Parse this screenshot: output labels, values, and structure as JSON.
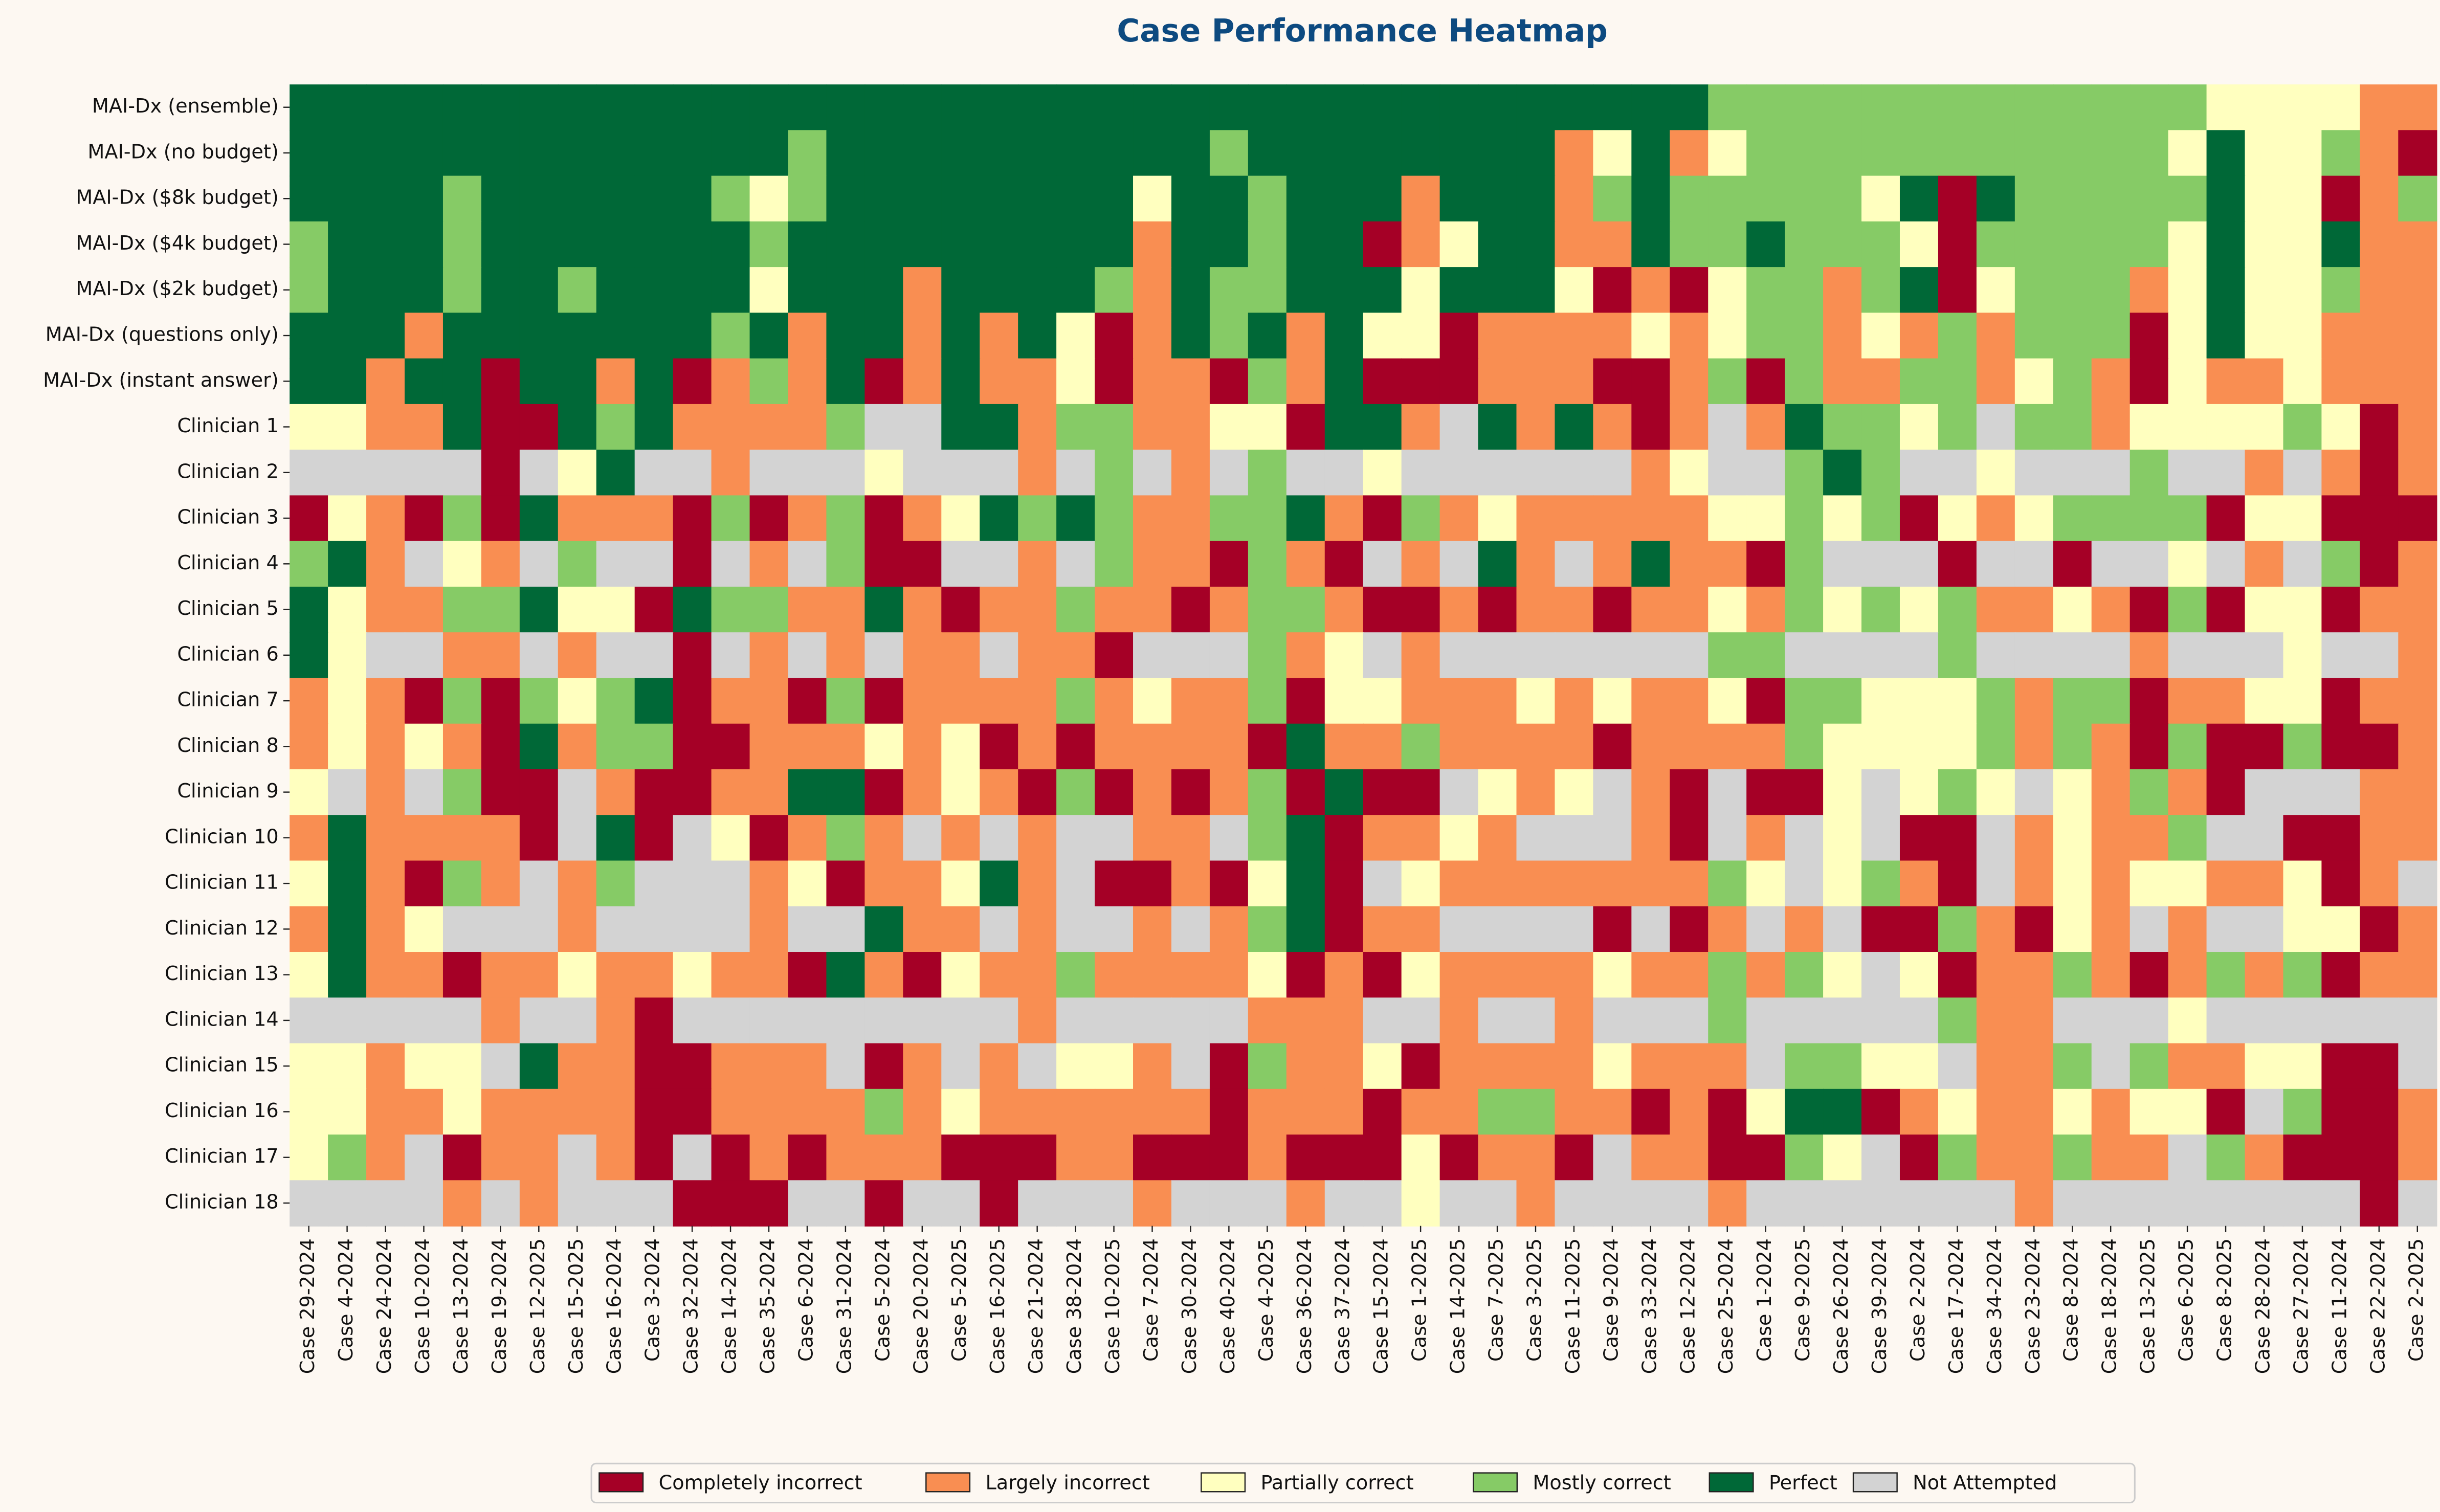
{
  "chart_data": {
    "type": "heatmap",
    "title": "Case Performance Heatmap",
    "rows": [
      "MAI-Dx (ensemble)",
      "MAI-Dx (no budget)",
      "MAI-Dx ($8k budget)",
      "MAI-Dx ($4k budget)",
      "MAI-Dx ($2k budget)",
      "MAI-Dx (questions only)",
      "MAI-Dx (instant answer)",
      "Clinician 1",
      "Clinician 2",
      "Clinician 3",
      "Clinician 4",
      "Clinician 5",
      "Clinician 6",
      "Clinician 7",
      "Clinician 8",
      "Clinician 9",
      "Clinician 10",
      "Clinician 11",
      "Clinician 12",
      "Clinician 13",
      "Clinician 14",
      "Clinician 15",
      "Clinician 16",
      "Clinician 17",
      "Clinician 18"
    ],
    "categories": [
      "Case 29-2024",
      "Case 4-2024",
      "Case 24-2024",
      "Case 10-2024",
      "Case 13-2024",
      "Case 19-2024",
      "Case 12-2025",
      "Case 15-2025",
      "Case 16-2024",
      "Case 3-2024",
      "Case 32-2024",
      "Case 14-2024",
      "Case 35-2024",
      "Case 6-2024",
      "Case 31-2024",
      "Case 5-2024",
      "Case 20-2024",
      "Case 5-2025",
      "Case 16-2025",
      "Case 21-2024",
      "Case 38-2024",
      "Case 10-2025",
      "Case 7-2024",
      "Case 30-2024",
      "Case 40-2024",
      "Case 4-2025",
      "Case 36-2024",
      "Case 37-2024",
      "Case 15-2024",
      "Case 1-2025",
      "Case 14-2025",
      "Case 7-2025",
      "Case 3-2025",
      "Case 11-2025",
      "Case 9-2024",
      "Case 33-2024",
      "Case 12-2024",
      "Case 25-2024",
      "Case 1-2024",
      "Case 9-2025",
      "Case 26-2024",
      "Case 39-2024",
      "Case 2-2024",
      "Case 17-2024",
      "Case 34-2024",
      "Case 23-2024",
      "Case 8-2024",
      "Case 18-2024",
      "Case 13-2025",
      "Case 6-2025",
      "Case 8-2025",
      "Case 28-2024",
      "Case 27-2024",
      "Case 11-2024",
      "Case 22-2024",
      "Case 2-2025"
    ],
    "legend": [
      {
        "name": "Completely incorrect",
        "color": "#a50026"
      },
      {
        "name": "Largely incorrect",
        "color": "#f98e52"
      },
      {
        "name": "Partially correct",
        "color": "#ffffbf"
      },
      {
        "name": "Mostly correct",
        "color": "#86cb66"
      },
      {
        "name": "Perfect",
        "color": "#006837"
      },
      {
        "name": "Not Attempted",
        "color": "#d3d3d3"
      }
    ],
    "values": [
      [
        4,
        4,
        4,
        4,
        4,
        4,
        4,
        4,
        4,
        4,
        4,
        4,
        4,
        4,
        4,
        4,
        4,
        4,
        4,
        4,
        4,
        4,
        4,
        4,
        4,
        4,
        4,
        4,
        4,
        4,
        4,
        4,
        4,
        4,
        4,
        4,
        4,
        3,
        3,
        3,
        3,
        3,
        3,
        3,
        3,
        3,
        3,
        3,
        3,
        3,
        2,
        2,
        2,
        2,
        1,
        1
      ],
      [
        4,
        4,
        4,
        4,
        4,
        4,
        4,
        4,
        4,
        4,
        4,
        4,
        4,
        3,
        4,
        4,
        4,
        4,
        4,
        4,
        4,
        4,
        4,
        4,
        3,
        4,
        4,
        4,
        4,
        4,
        4,
        4,
        4,
        1,
        2,
        4,
        1,
        2,
        3,
        3,
        3,
        3,
        3,
        3,
        3,
        3,
        3,
        3,
        3,
        2,
        4,
        2,
        2,
        3,
        1,
        0
      ],
      [
        4,
        4,
        4,
        4,
        3,
        4,
        4,
        4,
        4,
        4,
        4,
        3,
        2,
        3,
        4,
        4,
        4,
        4,
        4,
        4,
        4,
        4,
        2,
        4,
        4,
        3,
        4,
        4,
        4,
        1,
        4,
        4,
        4,
        1,
        3,
        4,
        3,
        3,
        3,
        3,
        3,
        2,
        4,
        0,
        4,
        3,
        3,
        3,
        3,
        3,
        4,
        2,
        2,
        0,
        1,
        3
      ],
      [
        3,
        4,
        4,
        4,
        3,
        4,
        4,
        4,
        4,
        4,
        4,
        4,
        3,
        4,
        4,
        4,
        4,
        4,
        4,
        4,
        4,
        4,
        1,
        4,
        4,
        3,
        4,
        4,
        0,
        1,
        2,
        4,
        4,
        1,
        1,
        4,
        3,
        3,
        4,
        3,
        3,
        3,
        2,
        0,
        3,
        3,
        3,
        3,
        3,
        2,
        4,
        2,
        2,
        4,
        1,
        1
      ],
      [
        3,
        4,
        4,
        4,
        3,
        4,
        4,
        3,
        4,
        4,
        4,
        4,
        2,
        4,
        4,
        4,
        1,
        4,
        4,
        4,
        4,
        3,
        1,
        4,
        3,
        3,
        4,
        4,
        4,
        2,
        4,
        4,
        4,
        2,
        0,
        1,
        0,
        2,
        3,
        3,
        1,
        3,
        4,
        0,
        2,
        3,
        3,
        3,
        1,
        2,
        4,
        2,
        2,
        3,
        1,
        1
      ],
      [
        4,
        4,
        4,
        1,
        4,
        4,
        4,
        4,
        4,
        4,
        4,
        3,
        4,
        1,
        4,
        4,
        1,
        4,
        1,
        4,
        2,
        0,
        1,
        4,
        3,
        4,
        1,
        4,
        2,
        2,
        0,
        1,
        1,
        1,
        1,
        2,
        1,
        2,
        3,
        3,
        1,
        2,
        1,
        3,
        1,
        3,
        3,
        3,
        0,
        2,
        4,
        2,
        2,
        1,
        1,
        1
      ],
      [
        4,
        4,
        1,
        4,
        4,
        0,
        4,
        4,
        1,
        4,
        0,
        1,
        3,
        1,
        4,
        0,
        1,
        4,
        1,
        1,
        2,
        0,
        1,
        1,
        0,
        3,
        1,
        4,
        0,
        0,
        0,
        1,
        1,
        1,
        0,
        0,
        1,
        3,
        0,
        3,
        1,
        1,
        3,
        3,
        1,
        2,
        3,
        1,
        0,
        2,
        1,
        1,
        2,
        1,
        1,
        1
      ],
      [
        2,
        2,
        1,
        1,
        4,
        0,
        0,
        4,
        3,
        4,
        1,
        1,
        1,
        1,
        3,
        5,
        5,
        4,
        4,
        1,
        3,
        3,
        1,
        1,
        2,
        2,
        0,
        4,
        4,
        1,
        5,
        4,
        1,
        4,
        1,
        0,
        1,
        5,
        1,
        4,
        3,
        3,
        2,
        3,
        5,
        3,
        3,
        1,
        2,
        2,
        2,
        2,
        3,
        2,
        0,
        1
      ],
      [
        5,
        5,
        5,
        5,
        5,
        0,
        5,
        2,
        4,
        5,
        5,
        1,
        5,
        5,
        5,
        2,
        5,
        5,
        5,
        1,
        5,
        3,
        5,
        1,
        5,
        3,
        5,
        5,
        2,
        5,
        5,
        5,
        5,
        5,
        5,
        1,
        2,
        5,
        5,
        3,
        4,
        3,
        5,
        5,
        2,
        5,
        5,
        5,
        3,
        5,
        5,
        1,
        5,
        1,
        0,
        1
      ],
      [
        0,
        2,
        1,
        0,
        3,
        0,
        4,
        1,
        1,
        1,
        0,
        3,
        0,
        1,
        3,
        0,
        1,
        2,
        4,
        3,
        4,
        3,
        1,
        1,
        3,
        3,
        4,
        1,
        0,
        3,
        1,
        2,
        1,
        1,
        1,
        1,
        1,
        2,
        2,
        3,
        2,
        3,
        0,
        2,
        1,
        2,
        3,
        3,
        3,
        3,
        0,
        2,
        2,
        0,
        0,
        0
      ],
      [
        3,
        4,
        1,
        5,
        2,
        1,
        5,
        3,
        5,
        5,
        0,
        5,
        1,
        5,
        3,
        0,
        0,
        5,
        5,
        1,
        5,
        3,
        1,
        1,
        0,
        3,
        1,
        0,
        5,
        1,
        5,
        4,
        1,
        5,
        1,
        4,
        1,
        1,
        0,
        3,
        5,
        5,
        5,
        0,
        5,
        5,
        0,
        5,
        5,
        2,
        5,
        1,
        5,
        3,
        0,
        1
      ],
      [
        4,
        2,
        1,
        1,
        3,
        3,
        4,
        2,
        2,
        0,
        4,
        3,
        3,
        1,
        1,
        4,
        1,
        0,
        1,
        1,
        3,
        1,
        1,
        0,
        1,
        3,
        3,
        1,
        0,
        0,
        1,
        0,
        1,
        1,
        0,
        1,
        1,
        2,
        1,
        3,
        2,
        3,
        2,
        3,
        1,
        1,
        2,
        1,
        0,
        3,
        0,
        2,
        2,
        0,
        1,
        1
      ],
      [
        4,
        2,
        5,
        5,
        1,
        1,
        5,
        1,
        5,
        5,
        0,
        5,
        1,
        5,
        1,
        5,
        1,
        1,
        5,
        1,
        1,
        0,
        5,
        5,
        5,
        3,
        1,
        2,
        5,
        1,
        5,
        5,
        5,
        5,
        5,
        5,
        5,
        3,
        3,
        5,
        5,
        5,
        5,
        3,
        5,
        5,
        5,
        5,
        1,
        5,
        5,
        5,
        2,
        5,
        5,
        1
      ],
      [
        1,
        2,
        1,
        0,
        3,
        0,
        3,
        2,
        3,
        4,
        0,
        1,
        1,
        0,
        3,
        0,
        1,
        1,
        1,
        1,
        3,
        1,
        2,
        1,
        1,
        3,
        0,
        2,
        2,
        1,
        1,
        1,
        2,
        1,
        2,
        1,
        1,
        2,
        0,
        3,
        3,
        2,
        2,
        2,
        3,
        1,
        3,
        3,
        0,
        1,
        1,
        2,
        2,
        0,
        1,
        1
      ],
      [
        1,
        2,
        1,
        2,
        1,
        0,
        4,
        1,
        3,
        3,
        0,
        0,
        1,
        1,
        1,
        2,
        1,
        2,
        0,
        1,
        0,
        1,
        1,
        1,
        1,
        0,
        4,
        1,
        1,
        3,
        1,
        1,
        1,
        1,
        0,
        1,
        1,
        1,
        1,
        3,
        2,
        2,
        2,
        2,
        3,
        1,
        3,
        1,
        0,
        3,
        0,
        0,
        3,
        0,
        0,
        1
      ],
      [
        2,
        5,
        1,
        5,
        3,
        0,
        0,
        5,
        1,
        0,
        0,
        1,
        1,
        4,
        4,
        0,
        1,
        2,
        1,
        0,
        3,
        0,
        1,
        0,
        1,
        3,
        0,
        4,
        0,
        0,
        5,
        2,
        1,
        2,
        5,
        1,
        0,
        5,
        0,
        0,
        2,
        5,
        2,
        3,
        2,
        5,
        2,
        1,
        3,
        1,
        0,
        5,
        5,
        5,
        1,
        1
      ],
      [
        1,
        4,
        1,
        1,
        1,
        1,
        0,
        5,
        4,
        0,
        5,
        2,
        0,
        1,
        3,
        1,
        5,
        1,
        5,
        1,
        5,
        5,
        1,
        1,
        5,
        3,
        4,
        0,
        1,
        1,
        2,
        1,
        5,
        5,
        5,
        1,
        0,
        5,
        1,
        5,
        2,
        5,
        0,
        0,
        5,
        1,
        2,
        1,
        1,
        3,
        5,
        5,
        0,
        0,
        1,
        1
      ],
      [
        2,
        4,
        1,
        0,
        3,
        1,
        5,
        1,
        3,
        5,
        5,
        5,
        1,
        2,
        0,
        1,
        1,
        2,
        4,
        1,
        5,
        0,
        0,
        1,
        0,
        2,
        4,
        0,
        5,
        2,
        1,
        1,
        1,
        1,
        1,
        1,
        1,
        3,
        2,
        5,
        2,
        3,
        1,
        0,
        5,
        1,
        2,
        1,
        2,
        2,
        1,
        1,
        2,
        0,
        1,
        5
      ],
      [
        1,
        4,
        1,
        2,
        5,
        5,
        5,
        1,
        5,
        5,
        5,
        5,
        1,
        5,
        5,
        4,
        1,
        1,
        5,
        1,
        5,
        5,
        1,
        5,
        1,
        3,
        4,
        0,
        1,
        1,
        5,
        5,
        5,
        5,
        0,
        5,
        0,
        1,
        5,
        1,
        5,
        0,
        0,
        3,
        1,
        0,
        2,
        1,
        5,
        1,
        5,
        5,
        2,
        2,
        0,
        1
      ],
      [
        2,
        4,
        1,
        1,
        0,
        1,
        1,
        2,
        1,
        1,
        2,
        1,
        1,
        0,
        4,
        1,
        0,
        2,
        1,
        1,
        3,
        1,
        1,
        1,
        1,
        2,
        0,
        1,
        0,
        2,
        1,
        1,
        1,
        1,
        2,
        1,
        1,
        3,
        1,
        3,
        2,
        5,
        2,
        0,
        1,
        1,
        3,
        1,
        0,
        1,
        3,
        1,
        3,
        0,
        1,
        1
      ],
      [
        5,
        5,
        5,
        5,
        5,
        1,
        5,
        5,
        1,
        0,
        5,
        5,
        5,
        5,
        5,
        5,
        5,
        5,
        5,
        1,
        5,
        5,
        5,
        5,
        5,
        1,
        1,
        1,
        5,
        5,
        1,
        5,
        5,
        1,
        5,
        5,
        5,
        3,
        5,
        5,
        5,
        5,
        5,
        3,
        1,
        1,
        5,
        5,
        5,
        2,
        5,
        5,
        5,
        5,
        5,
        5
      ],
      [
        2,
        2,
        1,
        2,
        2,
        5,
        4,
        1,
        1,
        0,
        0,
        1,
        1,
        1,
        5,
        0,
        1,
        5,
        1,
        5,
        2,
        2,
        1,
        5,
        0,
        3,
        1,
        1,
        2,
        0,
        1,
        1,
        1,
        1,
        2,
        1,
        1,
        1,
        5,
        3,
        3,
        2,
        2,
        5,
        1,
        1,
        3,
        5,
        3,
        1,
        1,
        2,
        2,
        0,
        0,
        5
      ],
      [
        2,
        2,
        1,
        1,
        2,
        1,
        1,
        1,
        1,
        0,
        0,
        1,
        1,
        1,
        1,
        3,
        1,
        2,
        1,
        1,
        1,
        1,
        1,
        1,
        0,
        1,
        1,
        1,
        0,
        1,
        1,
        3,
        3,
        1,
        1,
        0,
        1,
        0,
        2,
        4,
        4,
        0,
        1,
        2,
        1,
        1,
        2,
        1,
        2,
        2,
        0,
        5,
        3,
        0,
        0,
        1
      ],
      [
        2,
        3,
        1,
        5,
        0,
        1,
        1,
        5,
        1,
        0,
        5,
        0,
        1,
        0,
        1,
        1,
        1,
        0,
        0,
        0,
        1,
        1,
        0,
        0,
        0,
        1,
        0,
        0,
        0,
        2,
        0,
        1,
        1,
        0,
        5,
        1,
        1,
        0,
        0,
        3,
        2,
        5,
        0,
        3,
        1,
        1,
        3,
        1,
        1,
        5,
        3,
        1,
        0,
        0,
        0,
        1
      ],
      [
        5,
        5,
        5,
        5,
        1,
        5,
        1,
        5,
        5,
        5,
        0,
        0,
        0,
        5,
        5,
        0,
        5,
        5,
        0,
        5,
        5,
        5,
        1,
        5,
        5,
        5,
        1,
        5,
        5,
        2,
        5,
        5,
        1,
        5,
        5,
        5,
        5,
        1,
        5,
        5,
        5,
        5,
        5,
        5,
        5,
        1,
        5,
        5,
        5,
        5,
        5,
        5,
        5,
        5,
        0,
        5
      ]
    ]
  }
}
